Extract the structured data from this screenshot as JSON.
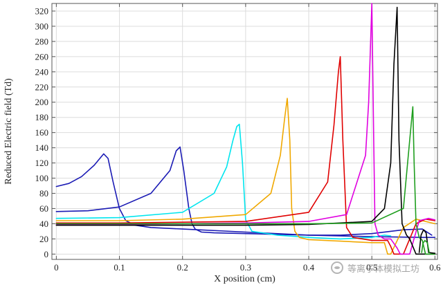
{
  "chart_data": {
    "type": "line",
    "title": "",
    "xlabel": "X position (cm)",
    "ylabel": "Reduced Electric field (Td)",
    "xlim": [
      -0.007,
      0.604
    ],
    "ylim": [
      -7,
      330
    ],
    "xticks": [
      0,
      0.1,
      0.2,
      0.3,
      0.4,
      0.5,
      0.6
    ],
    "xtick_labels": [
      "0",
      "0.1",
      "0.2",
      "0.3",
      "0.4",
      "0.5",
      "0.6"
    ],
    "yticks": [
      0,
      20,
      40,
      60,
      80,
      100,
      120,
      140,
      160,
      180,
      200,
      220,
      240,
      260,
      280,
      300,
      320
    ],
    "grid": true,
    "legend": "none",
    "series": [
      {
        "color": "#1a1ab4",
        "x": [
          0,
          0.02,
          0.04,
          0.06,
          0.07,
          0.075,
          0.082,
          0.09,
          0.1,
          0.11,
          0.125,
          0.15,
          0.2,
          0.3,
          0.4,
          0.5,
          0.58,
          0.6
        ],
        "y": [
          89,
          93,
          102,
          117,
          127,
          132,
          126,
          95,
          60,
          44,
          38,
          35,
          33,
          29,
          25,
          23,
          22,
          22
        ]
      },
      {
        "color": "#1a1ab4",
        "x": [
          0,
          0.05,
          0.1,
          0.15,
          0.18,
          0.19,
          0.196,
          0.202,
          0.21,
          0.215,
          0.22,
          0.23,
          0.25,
          0.3,
          0.35,
          0.4,
          0.45,
          0.5,
          0.55,
          0.58,
          0.595
        ],
        "y": [
          56,
          57,
          62,
          80,
          110,
          136,
          141,
          110,
          60,
          40,
          33,
          29,
          28,
          27,
          26,
          25,
          25,
          27,
          32,
          33,
          25
        ]
      },
      {
        "color": "#00e5ee",
        "x": [
          0,
          0.1,
          0.2,
          0.25,
          0.27,
          0.28,
          0.286,
          0.29,
          0.295,
          0.3,
          0.31,
          0.35,
          0.4,
          0.45,
          0.5,
          0.52,
          0.53
        ],
        "y": [
          47,
          48,
          55,
          80,
          115,
          150,
          168,
          171,
          120,
          45,
          30,
          25,
          22,
          20,
          22,
          25,
          24
        ]
      },
      {
        "color": "#f0a800",
        "x": [
          0,
          0.1,
          0.2,
          0.3,
          0.34,
          0.355,
          0.362,
          0.366,
          0.37,
          0.373,
          0.378,
          0.385,
          0.4,
          0.45,
          0.5,
          0.52,
          0.525,
          0.53,
          0.55,
          0.57,
          0.6
        ],
        "y": [
          44,
          44,
          46,
          52,
          80,
          130,
          180,
          205,
          150,
          60,
          30,
          22,
          19,
          17,
          15,
          15,
          0,
          0,
          35,
          46,
          40
        ]
      },
      {
        "color": "#e00000",
        "x": [
          0,
          0.1,
          0.2,
          0.3,
          0.4,
          0.43,
          0.44,
          0.447,
          0.45,
          0.454,
          0.46,
          0.47,
          0.5,
          0.525,
          0.53,
          0.535,
          0.55,
          0.57,
          0.585,
          0.6
        ],
        "y": [
          41,
          41,
          42,
          43,
          55,
          95,
          170,
          240,
          260,
          150,
          35,
          22,
          18,
          18,
          10,
          0,
          0,
          40,
          46,
          44
        ]
      },
      {
        "color": "#e000e0",
        "x": [
          0,
          0.1,
          0.2,
          0.3,
          0.4,
          0.46,
          0.49,
          0.495,
          0.5,
          0.503,
          0.505,
          0.51,
          0.52,
          0.53,
          0.54,
          0.545,
          0.55,
          0.56,
          0.575,
          0.59,
          0.6
        ],
        "y": [
          39,
          39,
          40,
          41,
          43,
          52,
          130,
          200,
          330,
          150,
          40,
          25,
          20,
          20,
          8,
          0,
          0,
          0,
          44,
          47,
          45
        ]
      },
      {
        "color": "#000000",
        "x": [
          0,
          0.1,
          0.2,
          0.3,
          0.4,
          0.5,
          0.52,
          0.53,
          0.535,
          0.54,
          0.543,
          0.548,
          0.555,
          0.56,
          0.57,
          0.575,
          0.58,
          0.59,
          0.6
        ],
        "y": [
          38,
          38,
          38,
          38,
          39,
          43,
          60,
          120,
          250,
          325,
          150,
          40,
          25,
          20,
          0,
          0,
          0,
          0,
          0
        ]
      },
      {
        "color": "#1e9e1e",
        "x": [
          0,
          0.1,
          0.2,
          0.3,
          0.4,
          0.5,
          0.55,
          0.56,
          0.565,
          0.567,
          0.57,
          0.575,
          0.58,
          0.585,
          0.59,
          0.6
        ],
        "y": [
          40,
          40,
          40,
          40,
          40,
          41,
          60,
          150,
          194,
          120,
          40,
          22,
          18,
          0,
          0,
          0
        ]
      },
      {
        "color": "#000000",
        "x": [
          0.575,
          0.578,
          0.582,
          0.586,
          0.59,
          0.6
        ],
        "y": [
          2,
          25,
          32,
          28,
          2,
          1
        ]
      },
      {
        "color": "#1e9e1e",
        "x": [
          0.579,
          0.581,
          0.584,
          0.588,
          0.591
        ],
        "y": [
          2,
          14,
          18,
          15,
          2
        ]
      }
    ]
  },
  "watermark": {
    "text": "等离子体模拟工坊"
  }
}
